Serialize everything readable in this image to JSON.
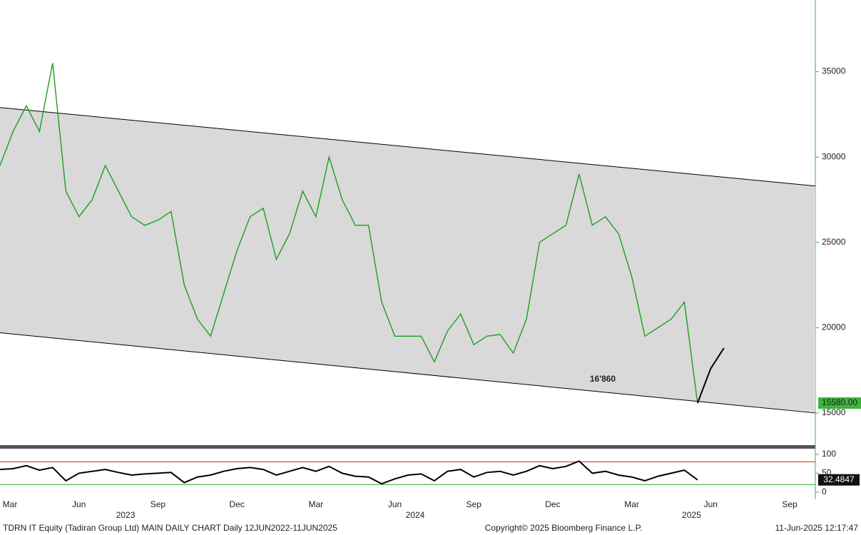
{
  "chart_data": [
    {
      "type": "line",
      "categories": [
        "Mar",
        null,
        null,
        null,
        null,
        null,
        "Jun",
        null,
        null,
        null,
        null,
        null,
        "Sep",
        null,
        null,
        null,
        null,
        null,
        "Dec",
        null,
        null,
        null,
        null,
        null,
        "Mar",
        null,
        null,
        null,
        null,
        null,
        "Jun",
        null,
        null,
        null,
        null,
        null,
        "Sep",
        null,
        null,
        null,
        null,
        null,
        "Dec",
        null,
        null,
        null,
        null,
        null,
        "Mar",
        null,
        null,
        null,
        null,
        null,
        "Jun",
        null,
        null,
        null,
        null,
        null,
        "Sep",
        null
      ],
      "year_labels": [
        "2023",
        "2024",
        "2025"
      ],
      "series": [
        {
          "color": "#1e9e1e",
          "values": [
            29500,
            31500,
            33000,
            31500,
            35500,
            28000,
            26500,
            27500,
            29500,
            28000,
            26500,
            26000,
            26300,
            26800,
            22500,
            20500,
            19500,
            22000,
            24500,
            26500,
            27000,
            24000,
            25500,
            28000,
            26500,
            30000,
            27500,
            26000,
            26000,
            21500,
            19500,
            19500,
            19500,
            18000,
            19800,
            20800,
            19000,
            19500,
            19600,
            18500,
            20500,
            25000,
            25500,
            26000,
            29000,
            26000,
            26500,
            25500,
            23000,
            19500,
            20000,
            20500,
            21500,
            15580,
            null,
            null,
            null,
            null,
            null,
            null,
            null,
            null
          ]
        },
        {
          "color": "#000000",
          "values": [
            null,
            null,
            null,
            null,
            null,
            null,
            null,
            null,
            null,
            null,
            null,
            null,
            null,
            null,
            null,
            null,
            null,
            null,
            null,
            null,
            null,
            null,
            null,
            null,
            null,
            null,
            null,
            null,
            null,
            null,
            null,
            null,
            null,
            null,
            null,
            null,
            null,
            null,
            null,
            null,
            null,
            null,
            null,
            null,
            null,
            null,
            null,
            null,
            null,
            null,
            null,
            null,
            null,
            15580,
            17600,
            18800,
            null,
            null,
            null,
            null,
            null,
            null
          ]
        }
      ],
      "channel": {
        "upper": [
          32900,
          28300
        ],
        "lower": [
          19700,
          15000
        ],
        "color": "#d9d9d9"
      },
      "annotation": "16'860",
      "last_label": "15580.00",
      "ylim": [
        13200,
        39200
      ],
      "yticks": [
        15000,
        20000,
        25000,
        30000,
        35000
      ]
    },
    {
      "type": "line",
      "series": [
        {
          "color": "#000000",
          "values": [
            60,
            62,
            70,
            58,
            65,
            30,
            50,
            55,
            60,
            52,
            45,
            48,
            50,
            52,
            25,
            40,
            45,
            55,
            62,
            65,
            60,
            45,
            55,
            65,
            55,
            68,
            50,
            42,
            40,
            22,
            35,
            45,
            48,
            30,
            55,
            60,
            40,
            52,
            55,
            45,
            55,
            70,
            62,
            68,
            82,
            50,
            55,
            45,
            40,
            30,
            42,
            50,
            58,
            32.4847,
            null,
            null,
            null,
            null,
            null,
            null,
            null,
            null
          ]
        }
      ],
      "levels": [
        {
          "value": 80,
          "color": "#c0392b"
        },
        {
          "value": 20,
          "color": "#2ca02c"
        }
      ],
      "last_label": "32.4847",
      "ylim": [
        -4,
        113
      ],
      "yticks": [
        0,
        50,
        100
      ]
    }
  ],
  "footer": {
    "left": "TDRN IT Equity (Tadiran Group Ltd) MAIN DAILY CHART  Daily 12JUN2022-11JUN2025",
    "center": "Copyright© 2025 Bloomberg Finance L.P.",
    "right": "11-Jun-2025 12:17:47"
  }
}
